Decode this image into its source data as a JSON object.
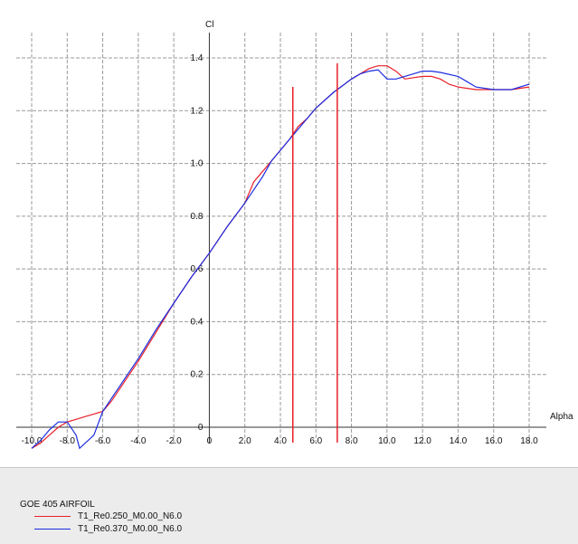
{
  "chart_data": {
    "type": "line",
    "xlabel": "Alpha",
    "ylabel": "Cl",
    "xlim": [
      -10,
      18
    ],
    "ylim": [
      0,
      1.4
    ],
    "x_ticks": [
      "-10.0",
      "-8.0",
      "-6.0",
      "-4.0",
      "-2.0",
      "0",
      "2.0",
      "4.0",
      "6.0",
      "8.0",
      "10.0",
      "12.0",
      "14.0",
      "16.0",
      "18.0"
    ],
    "y_ticks": [
      "0",
      "0.2",
      "0.4",
      "0.6",
      "0.8",
      "1.0",
      "1.2",
      "1.4"
    ],
    "grid": true,
    "series": [
      {
        "name": "T1_Re0.250_M0.00_N6.0",
        "color": "#e8202a",
        "points": [
          [
            -10,
            -0.08
          ],
          [
            -9.5,
            -0.06
          ],
          [
            -9,
            -0.03
          ],
          [
            -8.5,
            0.0
          ],
          [
            -8,
            0.02
          ],
          [
            -7.5,
            0.03
          ],
          [
            -7,
            0.04
          ],
          [
            -6.5,
            0.05
          ],
          [
            -6,
            0.06
          ],
          [
            -5.5,
            0.1
          ],
          [
            -5,
            0.15
          ],
          [
            -4.5,
            0.2
          ],
          [
            -4,
            0.25
          ],
          [
            -3,
            0.36
          ],
          [
            -2,
            0.47
          ],
          [
            -1,
            0.57
          ],
          [
            0,
            0.66
          ],
          [
            1,
            0.76
          ],
          [
            2,
            0.85
          ],
          [
            2.5,
            0.93
          ],
          [
            3,
            0.97
          ],
          [
            3.5,
            1.01
          ],
          [
            4,
            1.05
          ],
          [
            4.5,
            1.09
          ],
          [
            5,
            1.14
          ],
          [
            5.5,
            1.17
          ],
          [
            6,
            1.21
          ],
          [
            7,
            1.27
          ],
          [
            8,
            1.32
          ],
          [
            9,
            1.36
          ],
          [
            9.5,
            1.37
          ],
          [
            10,
            1.37
          ],
          [
            10.5,
            1.35
          ],
          [
            11,
            1.32
          ],
          [
            12,
            1.33
          ],
          [
            12.5,
            1.33
          ],
          [
            13,
            1.32
          ],
          [
            13.5,
            1.3
          ],
          [
            14,
            1.29
          ],
          [
            15,
            1.28
          ],
          [
            16,
            1.28
          ],
          [
            16.5,
            1.28
          ],
          [
            17,
            1.28
          ],
          [
            18,
            1.29
          ]
        ]
      },
      {
        "name": "T1_Re0.370_M0.00_N6.0",
        "color": "#1a2ce0",
        "points": [
          [
            -10,
            -0.08
          ],
          [
            -9.5,
            -0.05
          ],
          [
            -9,
            -0.01
          ],
          [
            -8.5,
            0.02
          ],
          [
            -8,
            0.02
          ],
          [
            -7.5,
            -0.03
          ],
          [
            -7.3,
            -0.08
          ],
          [
            -6.5,
            -0.03
          ],
          [
            -6,
            0.06
          ],
          [
            -5.5,
            0.11
          ],
          [
            -5,
            0.16
          ],
          [
            -4.5,
            0.21
          ],
          [
            -4,
            0.26
          ],
          [
            -3,
            0.37
          ],
          [
            -2,
            0.47
          ],
          [
            -1,
            0.57
          ],
          [
            0,
            0.66
          ],
          [
            1,
            0.76
          ],
          [
            2,
            0.85
          ],
          [
            3,
            0.95
          ],
          [
            3.5,
            1.01
          ],
          [
            4,
            1.05
          ],
          [
            4.5,
            1.09
          ],
          [
            5,
            1.13
          ],
          [
            5.5,
            1.17
          ],
          [
            6,
            1.21
          ],
          [
            7,
            1.27
          ],
          [
            8,
            1.32
          ],
          [
            8.5,
            1.34
          ],
          [
            9,
            1.35
          ],
          [
            9.5,
            1.355
          ],
          [
            10,
            1.32
          ],
          [
            10.5,
            1.32
          ],
          [
            11,
            1.33
          ],
          [
            12,
            1.35
          ],
          [
            12.5,
            1.35
          ],
          [
            13,
            1.345
          ],
          [
            14,
            1.33
          ],
          [
            14.5,
            1.31
          ],
          [
            15,
            1.29
          ],
          [
            16,
            1.28
          ],
          [
            17,
            1.28
          ],
          [
            18,
            1.3
          ]
        ]
      }
    ],
    "markers": [
      {
        "x": 4.7,
        "y_top": 1.29,
        "color": "#e8202a"
      },
      {
        "x": 7.2,
        "y_top": 1.38,
        "color": "#e8202a"
      }
    ]
  },
  "legend": {
    "title": "GOE 405 AIRFOIL",
    "items": [
      {
        "label": "T1_Re0.250_M0.00_N6.0",
        "color": "#e8202a"
      },
      {
        "label": "T1_Re0.370_M0.00_N6.0",
        "color": "#1a2ce0"
      }
    ]
  }
}
